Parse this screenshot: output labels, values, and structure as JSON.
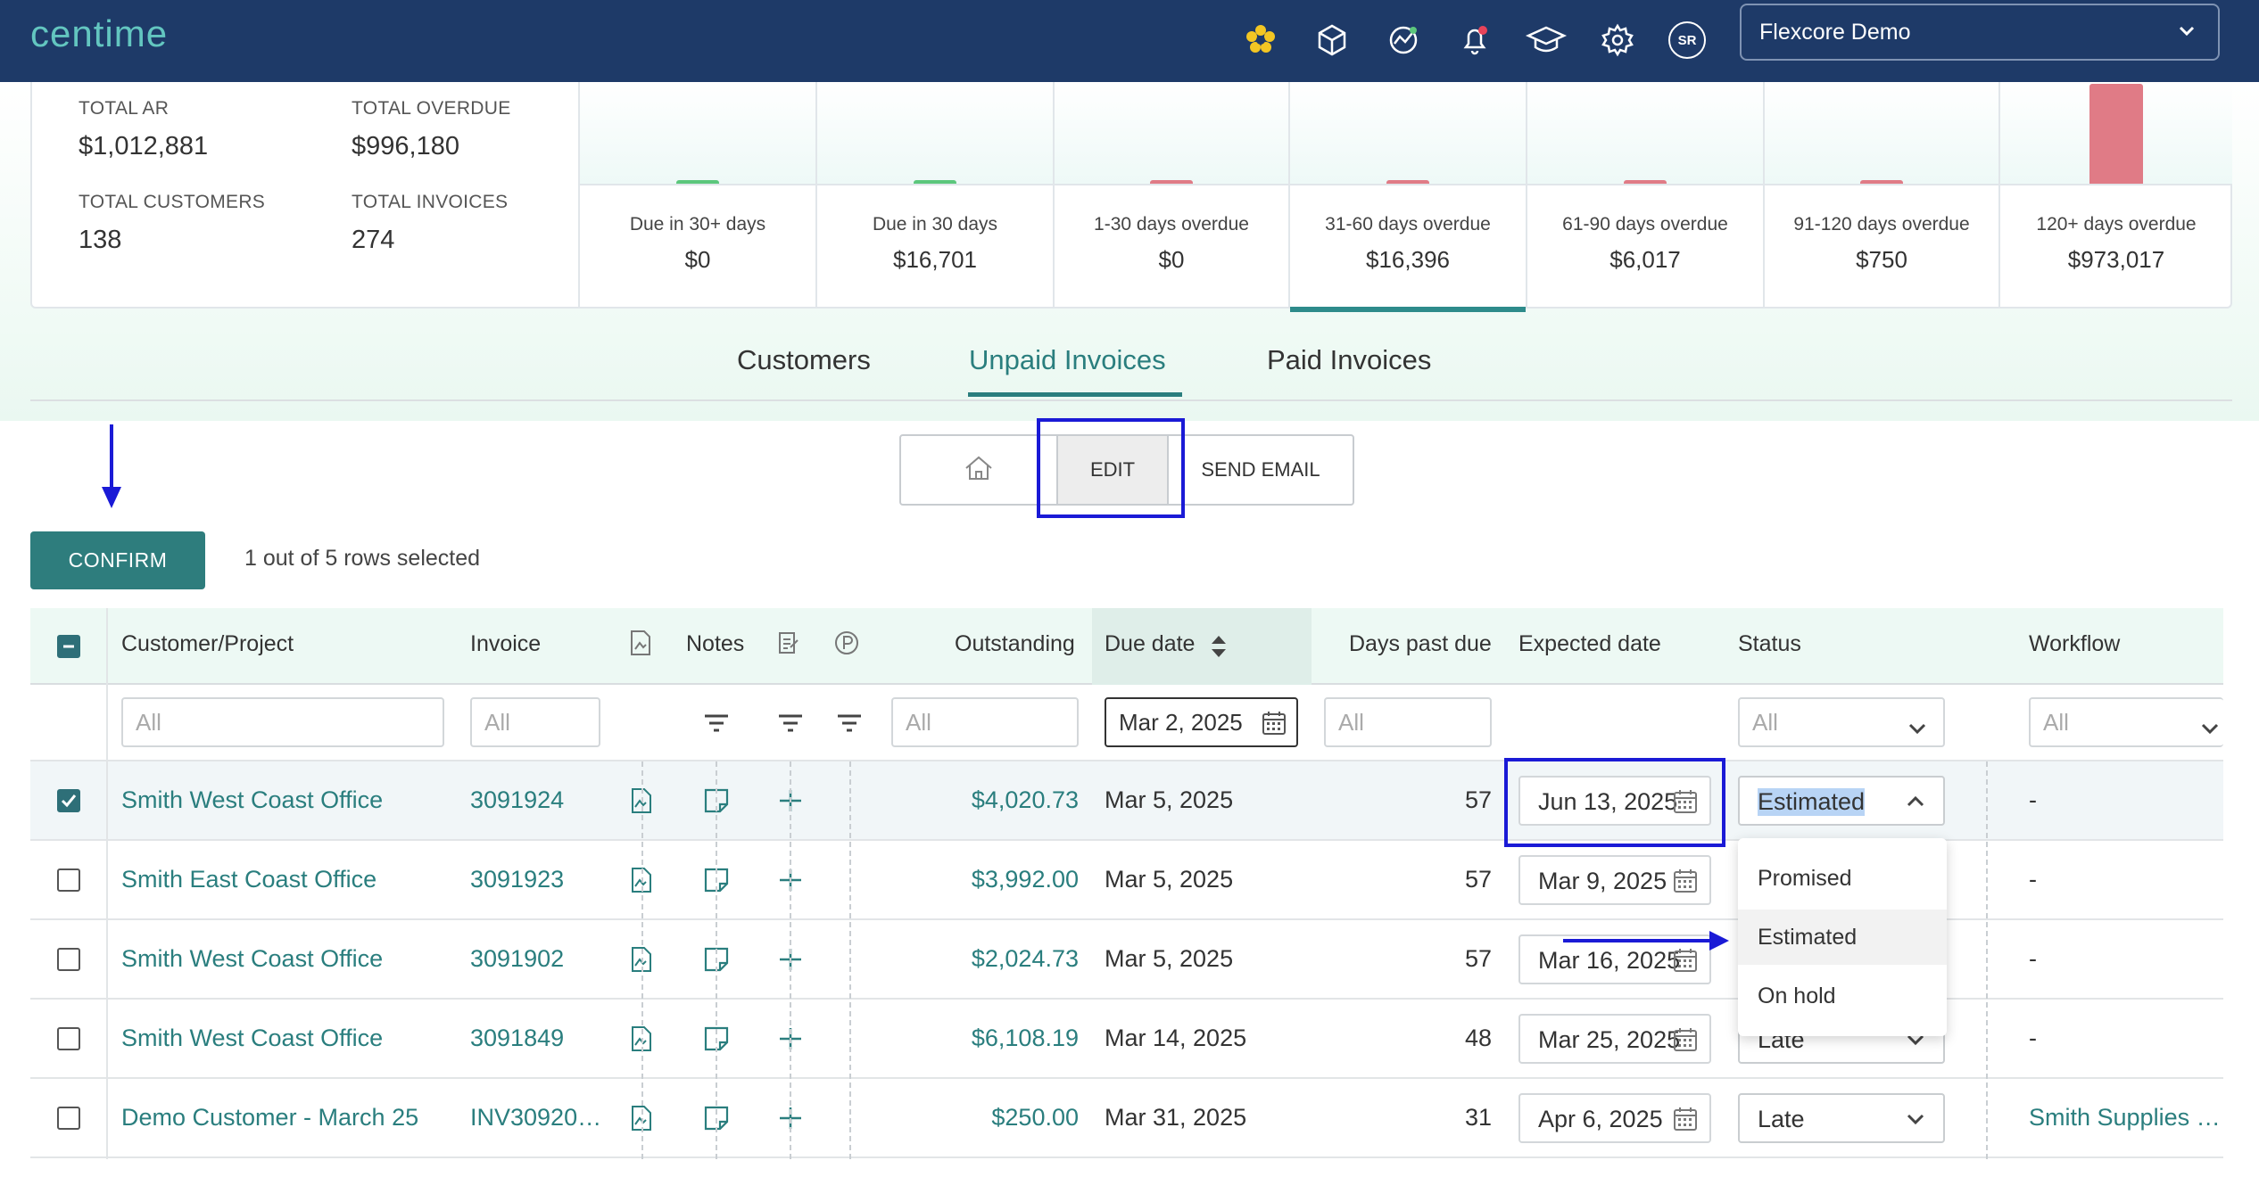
{
  "app": {
    "logo": "centime",
    "account": "Flexcore Demo",
    "avatar_initials": "SR",
    "colors": {
      "nav_bg": "#1e3a68",
      "accent": "#2a7e7e",
      "overdue_bar": "#e07b86",
      "current_bar": "#5cc77c",
      "highlight_box": "#1a1ad6"
    }
  },
  "summary": {
    "total_ar_label": "TOTAL AR",
    "total_ar": "$1,012,881",
    "total_overdue_label": "TOTAL OVERDUE",
    "total_overdue": "$996,180",
    "total_customers_label": "TOTAL CUSTOMERS",
    "total_customers": "138",
    "total_invoices_label": "TOTAL INVOICES",
    "total_invoices": "274"
  },
  "buckets": [
    {
      "label": "Due in 30+ days",
      "value": "$0",
      "amount": 0,
      "color": "#5cc77c",
      "active": false
    },
    {
      "label": "Due in 30 days",
      "value": "$16,701",
      "amount": 16701,
      "color": "#5cc77c",
      "active": false
    },
    {
      "label": "1-30 days overdue",
      "value": "$0",
      "amount": 0,
      "color": "#e07b86",
      "active": false
    },
    {
      "label": "31-60 days overdue",
      "value": "$16,396",
      "amount": 16396,
      "color": "#e07b86",
      "active": true
    },
    {
      "label": "61-90 days overdue",
      "value": "$6,017",
      "amount": 6017,
      "color": "#e07b86",
      "active": false
    },
    {
      "label": "91-120 days overdue",
      "value": "$750",
      "amount": 750,
      "color": "#e07b86",
      "active": false
    },
    {
      "label": "120+ days overdue",
      "value": "$973,017",
      "amount": 973017,
      "color": "#e07b86",
      "active": false
    }
  ],
  "tabs": [
    {
      "label": "Customers",
      "active": false
    },
    {
      "label": "Unpaid Invoices",
      "active": true
    },
    {
      "label": "Paid Invoices",
      "active": false
    }
  ],
  "toolbar": {
    "edit_label": "EDIT",
    "send_email_label": "SEND EMAIL"
  },
  "confirm_label": "CONFIRM",
  "rows_selected_text": "1 out of 5 rows selected",
  "table": {
    "headers": {
      "customer": "Customer/Project",
      "invoice": "Invoice",
      "notes": "Notes",
      "outstanding": "Outstanding",
      "due_date": "Due date",
      "days_past_due": "Days past due",
      "expected_date": "Expected date",
      "status": "Status",
      "workflow": "Workflow"
    },
    "filters": {
      "customer": "All",
      "invoice": "All",
      "outstanding": "All",
      "due_date": "Mar 2, 2025",
      "days_past_due": "All",
      "status": "All",
      "workflow": "All"
    },
    "rows": [
      {
        "selected": true,
        "customer": "Smith West Coast Office",
        "invoice": "3091924",
        "outstanding": "$4,020.73",
        "due_date": "Mar 5, 2025",
        "days_past_due": "57",
        "expected_date": "Jun 13, 2025",
        "status": "Estimated",
        "workflow": "-"
      },
      {
        "selected": false,
        "customer": "Smith East Coast Office",
        "invoice": "3091923",
        "outstanding": "$3,992.00",
        "due_date": "Mar 5, 2025",
        "days_past_due": "57",
        "expected_date": "Mar 9, 2025",
        "status": "",
        "workflow": "-"
      },
      {
        "selected": false,
        "customer": "Smith West Coast Office",
        "invoice": "3091902",
        "outstanding": "$2,024.73",
        "due_date": "Mar 5, 2025",
        "days_past_due": "57",
        "expected_date": "Mar 16, 2025",
        "status": "",
        "workflow": "-"
      },
      {
        "selected": false,
        "customer": "Smith West Coast Office",
        "invoice": "3091849",
        "outstanding": "$6,108.19",
        "due_date": "Mar 14, 2025",
        "days_past_due": "48",
        "expected_date": "Mar 25, 2025",
        "status": "Late",
        "workflow": "-"
      },
      {
        "selected": false,
        "customer": "Demo Customer - March 25",
        "invoice": "INV30920…",
        "outstanding": "$250.00",
        "due_date": "Mar 31, 2025",
        "days_past_due": "31",
        "expected_date": "Apr 6, 2025",
        "status": "Late",
        "workflow": "Smith Supplies …"
      }
    ]
  },
  "status_dropdown": {
    "options": [
      "Promised",
      "Estimated",
      "On hold"
    ],
    "hovered": "Estimated"
  }
}
